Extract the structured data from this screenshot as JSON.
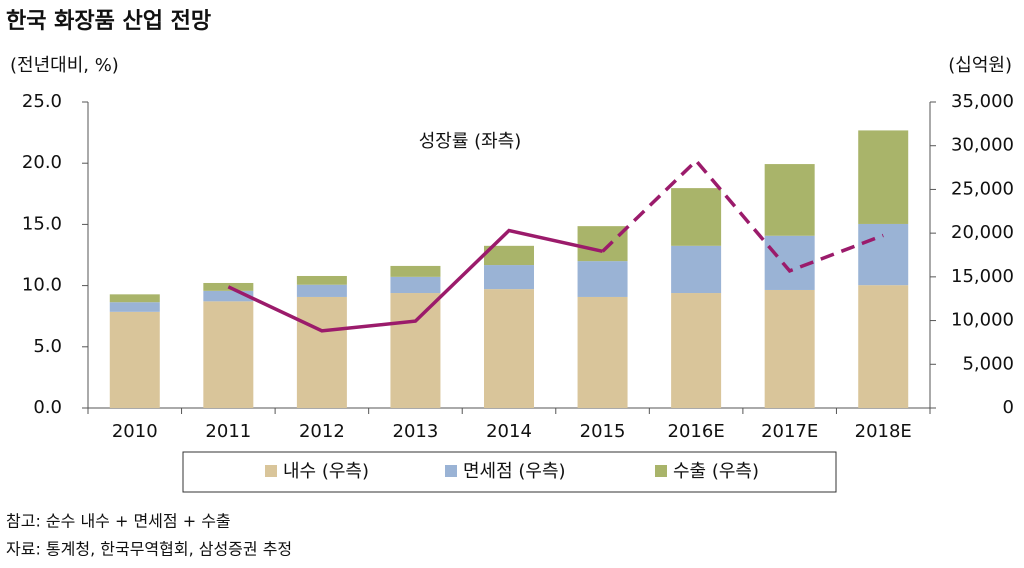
{
  "chart_data": {
    "type": "bar_line",
    "title": "한국 화장품 산업 전망",
    "ylabel": "(전년대비, %)",
    "y2label": "(십억원)",
    "line_annotation": "성장률 (좌측)",
    "notes": [
      "참고: 순수 내수 + 면세점 + 수출",
      "자료: 통계청, 한국무역협회, 삼성증권 추정"
    ],
    "categories": [
      "2010",
      "2011",
      "2012",
      "2013",
      "2014",
      "2015",
      "2016E",
      "2017E",
      "2018E"
    ],
    "series": [
      {
        "name": "내수 (우측)",
        "type": "bar",
        "axis": "y2",
        "color": "#d9c59a",
        "values": [
          11000,
          12200,
          12700,
          13150,
          13600,
          12700,
          13150,
          13500,
          14050
        ]
      },
      {
        "name": "면세점 (우측)",
        "type": "bar",
        "axis": "y2",
        "color": "#9ab3d5",
        "values": [
          1100,
          1200,
          1400,
          1850,
          2750,
          4100,
          5400,
          6200,
          7000
        ]
      },
      {
        "name": "수출 (우측)",
        "type": "bar",
        "axis": "y2",
        "color": "#a9b46a",
        "values": [
          900,
          900,
          1000,
          1250,
          2200,
          4000,
          6600,
          8200,
          10700
        ]
      },
      {
        "type": "line",
        "axis": "y",
        "color": "#9b1b6b",
        "dashed_from": "2015",
        "values": [
          null,
          9.9,
          6.3,
          7.1,
          14.5,
          12.8,
          20.2,
          11.2,
          14.1
        ]
      }
    ],
    "ylim": [
      0,
      25
    ],
    "yticks": [
      {
        "value": 0,
        "label": "0.0"
      },
      {
        "value": 5,
        "label": "5.0"
      },
      {
        "value": 10,
        "label": "10.0"
      },
      {
        "value": 15,
        "label": "15.0"
      },
      {
        "value": 20,
        "label": "20.0"
      },
      {
        "value": 25,
        "label": "25.0"
      }
    ],
    "y2lim": [
      0,
      35000
    ],
    "y2ticks": [
      0,
      {
        "value": 5000,
        "label": "5,000"
      },
      {
        "value": 10000,
        "label": "10,000"
      },
      {
        "value": 15000,
        "label": "15,000"
      },
      {
        "value": 20000,
        "label": "20,000"
      },
      {
        "value": 25000,
        "label": "25,000"
      },
      {
        "value": 30000,
        "label": "30,000"
      },
      {
        "value": 35000,
        "label": "35,000"
      }
    ],
    "grid": false
  }
}
